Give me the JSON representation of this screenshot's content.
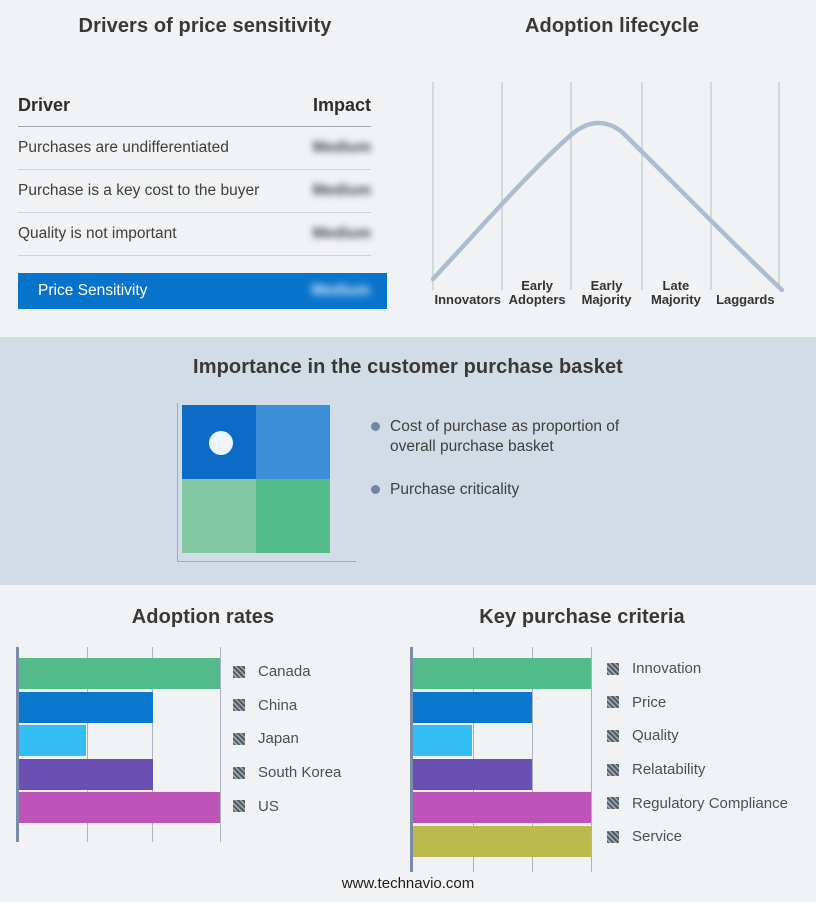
{
  "page": {
    "background": "#f1f2f4",
    "band_background": "#d2dce7",
    "footer_link": "www.technavio.com"
  },
  "drivers_panel": {
    "title": "Drivers of price sensitivity",
    "columns": {
      "driver": "Driver",
      "impact": "Impact"
    },
    "rows": [
      {
        "driver": "Purchases are undifferentiated",
        "impact": "Medium"
      },
      {
        "driver": "Purchase is a key cost to the buyer",
        "impact": "Medium"
      },
      {
        "driver": "Quality is not important",
        "impact": "Medium"
      }
    ],
    "highlight_row": {
      "driver": "Price Sensitivity",
      "impact": "Medium",
      "color": "#0873cb"
    }
  },
  "lifecycle_panel": {
    "title": "Adoption lifecycle",
    "stages": [
      "Innovators",
      "Early Adopters",
      "Early Majority",
      "Late Majority",
      "Laggards"
    ],
    "curve_color": "#aebccf",
    "gridline_color": "#b3bdcd"
  },
  "basket_panel": {
    "title": "Importance in the customer purchase basket",
    "bullets": [
      "Cost of purchase as proportion of overall purchase basket",
      "Purchase criticality"
    ],
    "quadrant": {
      "top_left": "#0c6bc6",
      "top_right": "#3d8ed8",
      "bottom_left": "#85c8a5",
      "bottom_right": "#52bb88"
    }
  },
  "chart_data": [
    {
      "type": "bar",
      "title": "Adoption rates",
      "orientation": "horizontal",
      "categories": [
        "Canada",
        "China",
        "Japan",
        "South Korea",
        "US"
      ],
      "values": [
        3,
        2,
        1,
        2,
        3
      ],
      "colors": [
        "#52ba8b",
        "#0b78ce",
        "#33bff3",
        "#6b4fb2",
        "#bf54b8"
      ],
      "xlim": [
        0,
        3
      ],
      "grid": true,
      "legend_position": "right"
    },
    {
      "type": "bar",
      "title": "Key purchase criteria",
      "orientation": "horizontal",
      "categories": [
        "Innovation",
        "Price",
        "Quality",
        "Relatability",
        "Regulatory Compliance",
        "Service"
      ],
      "values": [
        3,
        2,
        1,
        2,
        3,
        3
      ],
      "colors": [
        "#52ba8b",
        "#0b78ce",
        "#33bff3",
        "#6b4fb2",
        "#bf54b8",
        "#bcba4e"
      ],
      "xlim": [
        0,
        3
      ],
      "grid": true,
      "legend_position": "right"
    },
    {
      "type": "line",
      "title": "Adoption lifecycle",
      "x": [
        "Innovators",
        "Early Adopters",
        "Early Majority",
        "Late Majority",
        "Laggards"
      ],
      "description": "Bell-shaped adoption curve peaking near Early Majority",
      "line_color": "#aebccf"
    }
  ]
}
